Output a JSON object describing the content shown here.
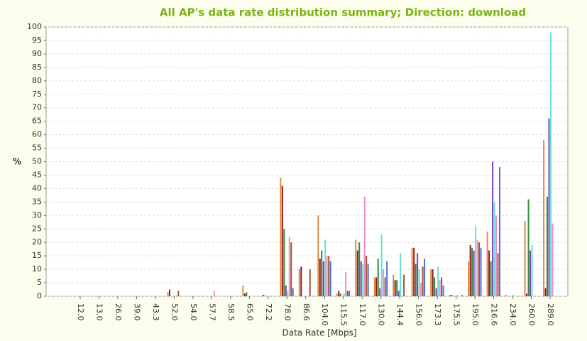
{
  "chart_data": {
    "type": "bar",
    "title": "All AP's data rate distribution summary; Direction: download",
    "x_label": "Data Rate [Mbps]",
    "y_label": "%",
    "categories": [
      "12.0",
      "13.0",
      "26.0",
      "39.0",
      "43.3",
      "52.0",
      "54.0",
      "57.7",
      "58.5",
      "65.0",
      "72.2",
      "78.0",
      "86.6",
      "104.0",
      "115.5",
      "117.0",
      "130.0",
      "144.4",
      "156.0",
      "173.3",
      "175.5",
      "195.0",
      "216.6",
      "234.0",
      "260.0",
      "289.0"
    ],
    "series": [
      {
        "color": "#e8883a",
        "values": [
          0,
          0,
          0,
          0,
          0,
          1.5,
          0,
          0,
          0,
          4,
          0,
          44,
          10,
          30,
          1,
          21,
          7,
          8,
          18,
          10,
          0.5,
          13,
          24,
          0.5,
          28,
          58
        ]
      },
      {
        "color": "#8b1a1a",
        "values": [
          0,
          0,
          0,
          0,
          0,
          2.5,
          0,
          0,
          0,
          1,
          0.5,
          41,
          11,
          14,
          2,
          17,
          7,
          6,
          18,
          10,
          0.5,
          19,
          17,
          0,
          1,
          3
        ]
      },
      {
        "color": "#2e8b3a",
        "values": [
          0,
          0,
          0,
          0,
          0,
          0,
          0,
          0,
          0,
          1.5,
          0,
          25,
          0,
          17,
          1,
          20,
          14,
          6,
          12,
          7,
          0,
          18,
          13,
          0,
          36,
          37
        ]
      },
      {
        "color": "#7a3fc0",
        "values": [
          0,
          0,
          0,
          0,
          0,
          0,
          0,
          0,
          0,
          0,
          0,
          4,
          0,
          13,
          0,
          13,
          3,
          2,
          16,
          3,
          0,
          17,
          50,
          0,
          17,
          66
        ]
      },
      {
        "color": "#66e0d0",
        "values": [
          0,
          0,
          0,
          0,
          0,
          0,
          0,
          0,
          0,
          0,
          0,
          2,
          0,
          21,
          1,
          12,
          23,
          16,
          10,
          11,
          0.5,
          26,
          35,
          0.5,
          19,
          98
        ]
      },
      {
        "color": "#f08cc8",
        "values": [
          0,
          0,
          0,
          0,
          0,
          0,
          0,
          2,
          0,
          0,
          0,
          22,
          0,
          15,
          9,
          37,
          10,
          0,
          5,
          6,
          0,
          21,
          30,
          0,
          0,
          27
        ]
      },
      {
        "color": "#a0522d",
        "values": [
          0,
          0,
          0,
          0,
          0,
          2,
          0,
          0,
          0,
          0,
          0,
          20,
          10,
          15,
          2,
          15,
          7,
          8,
          11,
          7,
          0,
          20,
          16,
          0,
          0,
          0
        ]
      },
      {
        "color": "#5070d0",
        "values": [
          0,
          0,
          0,
          0,
          0,
          0,
          0,
          0,
          0,
          0,
          0,
          3,
          0,
          13,
          2,
          12,
          13,
          0,
          14,
          4,
          0.5,
          18,
          48,
          0,
          0,
          0
        ]
      }
    ],
    "ylim": [
      0,
      100
    ],
    "yticks": [
      0,
      5,
      10,
      15,
      20,
      25,
      30,
      35,
      40,
      45,
      50,
      55,
      60,
      65,
      70,
      75,
      80,
      85,
      90,
      95,
      100
    ],
    "grid": true
  }
}
